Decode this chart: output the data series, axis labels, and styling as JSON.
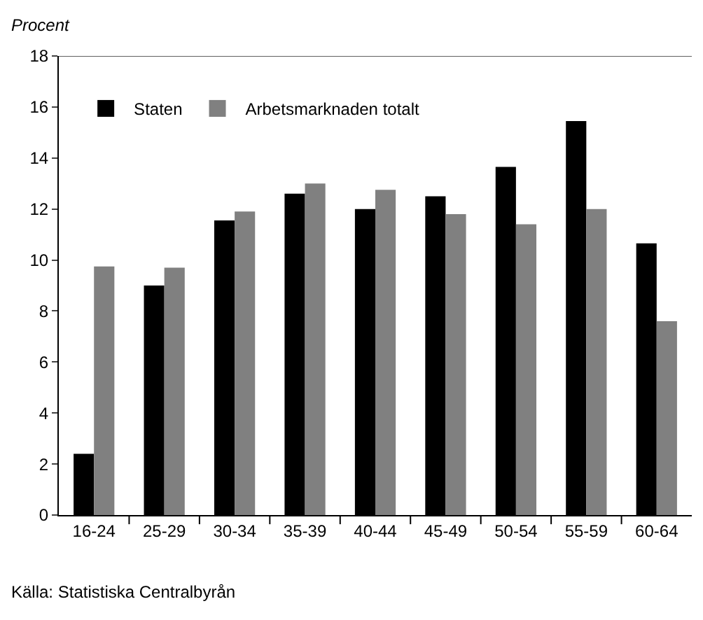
{
  "chart_data": {
    "type": "bar",
    "ylabel": "Procent",
    "categories": [
      "16-24",
      "25-29",
      "30-34",
      "35-39",
      "40-44",
      "45-49",
      "50-54",
      "55-59",
      "60-64"
    ],
    "series": [
      {
        "name": "Staten",
        "color": "#000000",
        "values": [
          2.4,
          9.0,
          11.55,
          12.6,
          12.0,
          12.5,
          13.65,
          15.45,
          10.65
        ]
      },
      {
        "name": "Arbetsmarknaden totalt",
        "color": "#808080",
        "values": [
          9.75,
          9.7,
          11.9,
          13.0,
          12.75,
          11.8,
          11.4,
          12.0,
          7.6
        ]
      }
    ],
    "ylim": [
      0,
      18
    ],
    "yticks": [
      0,
      2,
      4,
      6,
      8,
      10,
      12,
      14,
      16,
      18
    ],
    "legend": "top left",
    "annotations": [
      "Källa: Statistiska Centralbyrån"
    ]
  }
}
